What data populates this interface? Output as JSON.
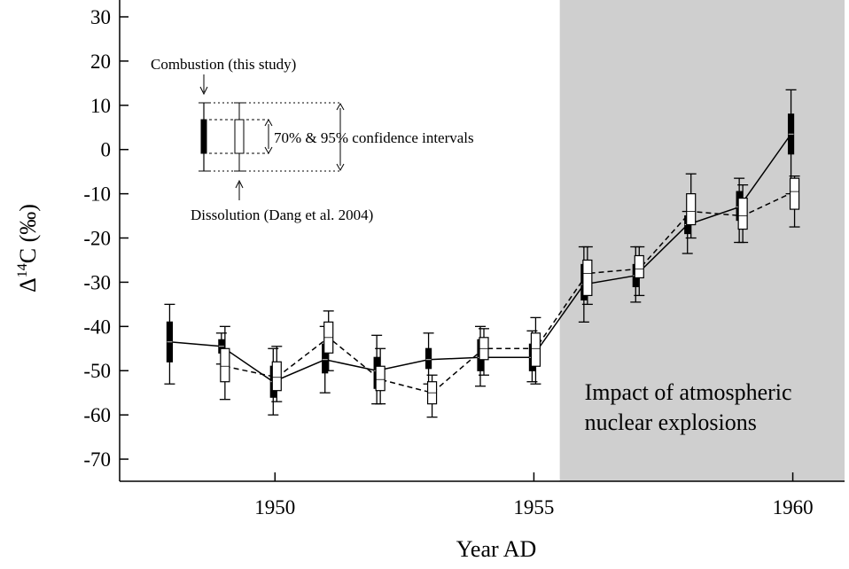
{
  "chart_data": {
    "type": "errorbox",
    "ylabel": {
      "delta": "Δ",
      "sup": "14",
      "rest": "C (‰)"
    },
    "xlabel": "Year AD",
    "xlim": [
      1947,
      1961
    ],
    "xticks": [
      1950,
      1955,
      1960
    ],
    "ylim": [
      -75,
      30
    ],
    "yticks": [
      -70,
      -60,
      -50,
      -40,
      -30,
      -20,
      -10,
      0,
      10,
      20,
      30
    ],
    "shaded_region": [
      1955.5,
      1961
    ],
    "shade_label": [
      "Impact of atmospheric",
      "nuclear explosions"
    ],
    "legend_texts": {
      "combustion": "Combustion (this study)",
      "dissolution": "Dissolution (Dang et al.  2004)",
      "intervals": "70% & 95% confidence intervals"
    },
    "series": [
      {
        "name": "Combustion",
        "color": "#000000",
        "dashed": false,
        "box_fill": "#000000",
        "x": [
          1948,
          1949,
          1950,
          1951,
          1952,
          1953,
          1954,
          1955,
          1956,
          1957,
          1958,
          1959,
          1960
        ],
        "values": [
          -43.5,
          -44.5,
          -52.5,
          -47.5,
          -50,
          -47.5,
          -47,
          -47,
          -30.5,
          -28.5,
          -17,
          -13,
          3.5
        ],
        "ci70_low": [
          -48,
          -46,
          -56,
          -50.5,
          -54,
          -49.5,
          -50,
          -50,
          -34,
          -31,
          -19,
          -16,
          -1
        ],
        "ci70_high": [
          -39,
          -43,
          -49,
          -44,
          -47,
          -45,
          -43,
          -44,
          -26,
          -26,
          -15,
          -9.5,
          8
        ],
        "ci95_low": [
          -53,
          -48.5,
          -60,
          -55,
          -57.5,
          -53,
          -53.5,
          -52.5,
          -39,
          -34.5,
          -23.5,
          -21,
          -10
        ],
        "ci95_high": [
          -35,
          -41.5,
          -45,
          -40,
          -42,
          -41.5,
          -40,
          -41,
          -22,
          -22,
          -14,
          -6.5,
          13.5
        ]
      },
      {
        "name": "Dissolution",
        "color": "#000000",
        "dashed": true,
        "box_fill": "#ffffff",
        "x": [
          1949,
          1950,
          1951,
          1952,
          1953,
          1954,
          1955,
          1956,
          1957,
          1958,
          1959,
          1960
        ],
        "values": [
          -49,
          -51.5,
          -42.5,
          -52,
          -55,
          -45,
          -45,
          -28,
          -27,
          -14,
          -15,
          -9.5
        ],
        "ci70_low": [
          -52.5,
          -54.5,
          -46,
          -54.5,
          -57.5,
          -47.5,
          -49,
          -33,
          -29,
          -17,
          -18,
          -13.5
        ],
        "ci70_high": [
          -45,
          -48,
          -39,
          -49,
          -52.5,
          -42.5,
          -41.5,
          -25,
          -24,
          -10,
          -11,
          -6.5
        ],
        "ci95_low": [
          -56.5,
          -57,
          -50,
          -57.5,
          -60.5,
          -51,
          -53,
          -35,
          -33,
          -20,
          -21,
          -17.5
        ],
        "ci95_high": [
          -40,
          -44.5,
          -36.5,
          -45,
          -51,
          -40.5,
          -38,
          -22,
          -22,
          -5.5,
          -8,
          -6
        ]
      }
    ]
  }
}
